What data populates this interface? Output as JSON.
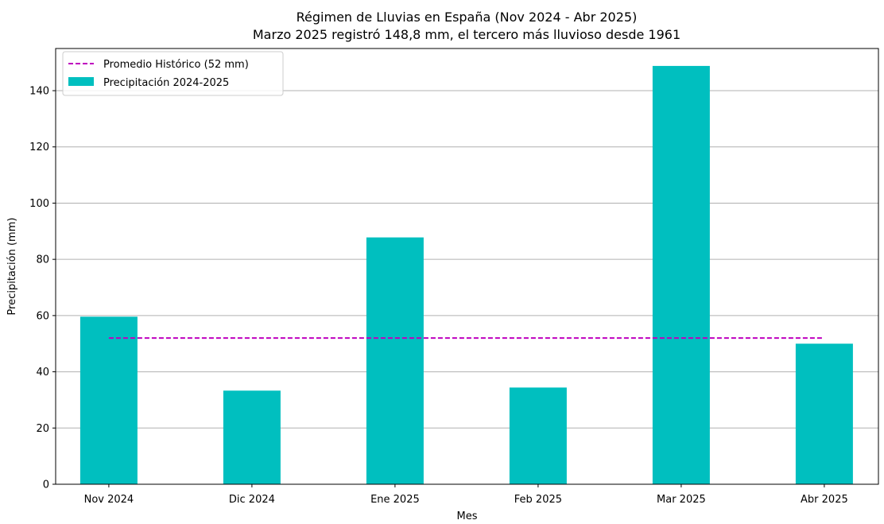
{
  "chart_data": {
    "type": "bar",
    "title": "Régimen de Lluvias en España (Nov 2024 - Abr 2025)",
    "subtitle": "Marzo 2025 registró 148,8 mm, el tercero más lluvioso desde 1961",
    "xlabel": "Mes",
    "ylabel": "Precipitación (mm)",
    "categories": [
      "Nov 2024",
      "Dic 2024",
      "Ene 2025",
      "Feb 2025",
      "Mar 2025",
      "Abr 2025"
    ],
    "series": [
      {
        "name": "Precipitación 2024-2025",
        "values": [
          59.6,
          33.3,
          87.8,
          34.4,
          148.8,
          50.0
        ],
        "color": "#00bfbf"
      }
    ],
    "reference_line": {
      "name": "Promedio Histórico (52 mm)",
      "value": 52,
      "color": "#bf00bf",
      "style": "dashed"
    },
    "ylim": [
      0,
      155
    ],
    "yticks": [
      0,
      20,
      40,
      60,
      80,
      100,
      120,
      140
    ],
    "grid": "horizontal",
    "legend_position": "top-left"
  }
}
